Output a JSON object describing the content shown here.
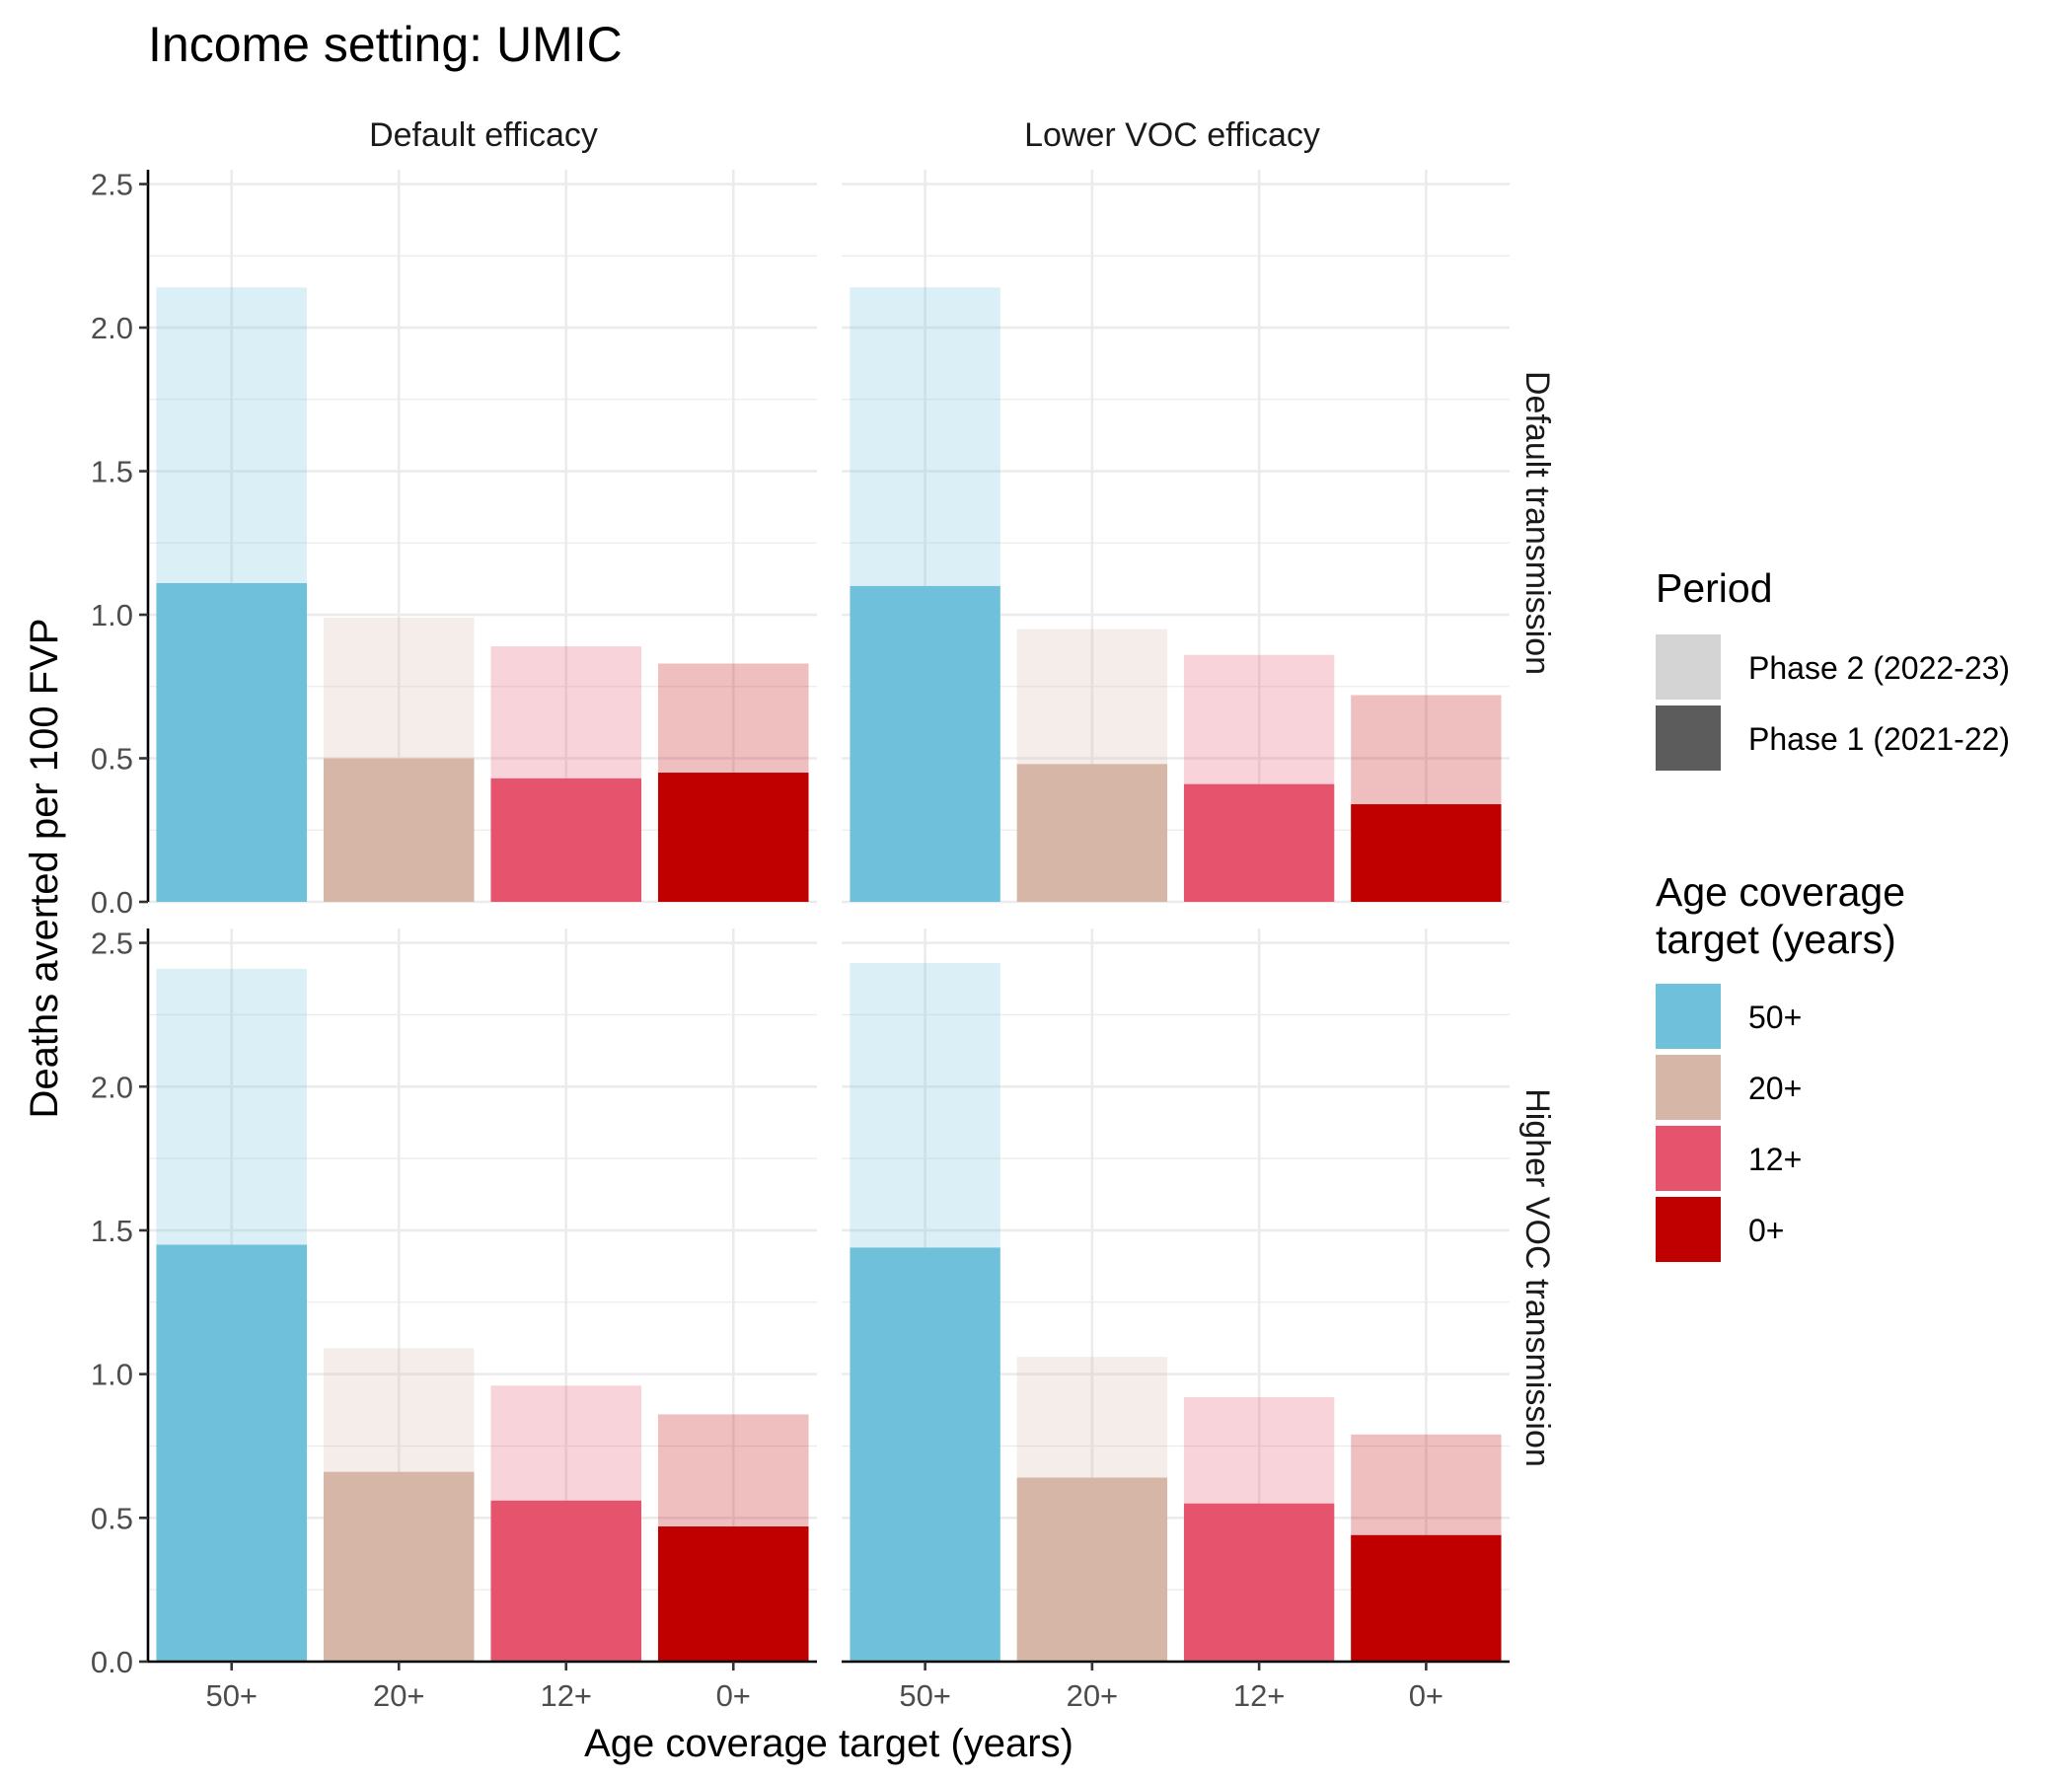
{
  "chart_data": {
    "type": "bar",
    "title": "Income setting: UMIC",
    "xlabel": "Age coverage target (years)",
    "ylabel": "Deaths averted per 100 FVP",
    "ylim": [
      0,
      2.55
    ],
    "yticks": [
      "0.0",
      "0.5",
      "1.0",
      "1.5",
      "2.0",
      "2.5"
    ],
    "categories": [
      "50+",
      "20+",
      "12+",
      "0+"
    ],
    "category_colors": [
      "#6fc0db",
      "#d6b6a6",
      "#e5546c",
      "#c00000"
    ],
    "facet_cols": [
      "Default efficacy",
      "Lower VOC efficacy"
    ],
    "facet_rows": [
      "Default transmission",
      "Higher VOC transmission"
    ],
    "panels": [
      {
        "row": "Default transmission",
        "col": "Default efficacy",
        "phase1": [
          1.11,
          0.5,
          0.43,
          0.45
        ],
        "total": [
          2.14,
          0.99,
          0.89,
          0.83
        ]
      },
      {
        "row": "Default transmission",
        "col": "Lower VOC efficacy",
        "phase1": [
          1.1,
          0.48,
          0.41,
          0.34
        ],
        "total": [
          2.14,
          0.95,
          0.86,
          0.72
        ]
      },
      {
        "row": "Higher VOC transmission",
        "col": "Default efficacy",
        "phase1": [
          1.45,
          0.66,
          0.56,
          0.47
        ],
        "total": [
          2.41,
          1.09,
          0.96,
          0.86
        ]
      },
      {
        "row": "Higher VOC transmission",
        "col": "Lower VOC efficacy",
        "phase1": [
          1.44,
          0.64,
          0.55,
          0.44
        ],
        "total": [
          2.43,
          1.06,
          0.92,
          0.79
        ]
      }
    ],
    "grid": true,
    "legend_position": "right"
  },
  "legend": {
    "period_title": "Period",
    "period_items": [
      {
        "label": "Phase 2 (2022-23)",
        "color": "#d4d4d4"
      },
      {
        "label": "Phase 1 (2021-22)",
        "color": "#5c5c5c"
      }
    ],
    "age_title_line1": "Age coverage",
    "age_title_line2": "target (years)",
    "age_items": [
      {
        "label": "50+",
        "color": "#6fc0db"
      },
      {
        "label": "20+",
        "color": "#d6b6a6"
      },
      {
        "label": "12+",
        "color": "#e5546c"
      },
      {
        "label": "0+",
        "color": "#c00000"
      }
    ]
  }
}
